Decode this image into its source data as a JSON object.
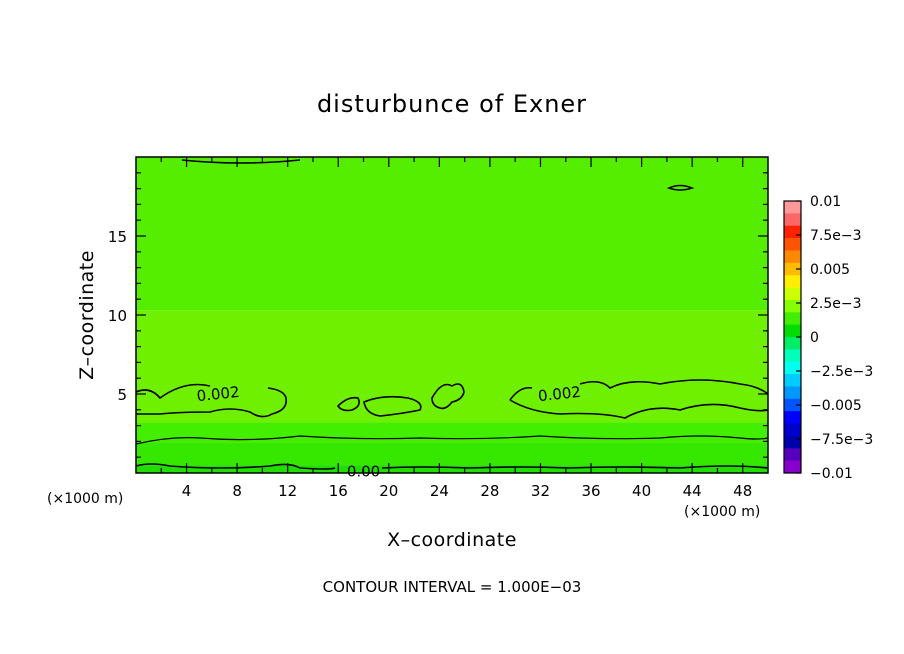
{
  "chart_data": {
    "type": "heatmap",
    "subtype": "filled-contour",
    "title": "disturbunce of Exner",
    "xlabel": "X–coordinate",
    "ylabel": "Z–coordinate",
    "x_unit": "(×1000 m)",
    "x_unit_right": "(×1000 m)",
    "xlim": [
      0,
      50
    ],
    "ylim": [
      0,
      20
    ],
    "x_ticks": [
      4,
      8,
      12,
      16,
      20,
      24,
      28,
      32,
      36,
      40,
      44,
      48
    ],
    "y_ticks": [
      5,
      10,
      15
    ],
    "contour_interval_text": "CONTOUR INTERVAL = 1.000E−03",
    "contour_labels": [
      {
        "text": "0.002",
        "x": 6.5,
        "z": 5.0
      },
      {
        "text": "0.002",
        "x": 33.5,
        "z": 5.0
      },
      {
        "text": "0.00",
        "x": 18.0,
        "z": 0.1
      }
    ],
    "bands": [
      {
        "z_bottom": 0.0,
        "z_top": 0.5,
        "value": -0.0005,
        "color": "#22dd00"
      },
      {
        "z_bottom": 0.5,
        "z_top": 1.9,
        "value": 0.0008,
        "color": "#36e800"
      },
      {
        "z_bottom": 1.9,
        "z_top": 3.2,
        "value": 0.0013,
        "color": "#44ee00"
      },
      {
        "z_bottom": 3.2,
        "z_top": 10.3,
        "value": 0.0017,
        "color": "#6ef000"
      },
      {
        "z_bottom": 10.3,
        "z_top": 20.0,
        "value": 0.0012,
        "color": "#55ee00"
      }
    ],
    "colorbar": {
      "labels": [
        "0.01",
        "7.5e−3",
        "0.005",
        "2.5e−3",
        "0",
        "−2.5e−3",
        "−0.005",
        "−7.5e−3",
        "−0.01"
      ],
      "colors_top_to_bottom": [
        "#ff9999",
        "#ff6666",
        "#ff2200",
        "#ff5500",
        "#ff8800",
        "#ffbb00",
        "#ffee00",
        "#ccff00",
        "#88ff00",
        "#44ee00",
        "#00dd00",
        "#00ee66",
        "#00ffbb",
        "#00ffee",
        "#00ccff",
        "#0099ff",
        "#0055ff",
        "#0000ff",
        "#0000cc",
        "#0000aa",
        "#5500bb",
        "#8800cc"
      ]
    }
  }
}
